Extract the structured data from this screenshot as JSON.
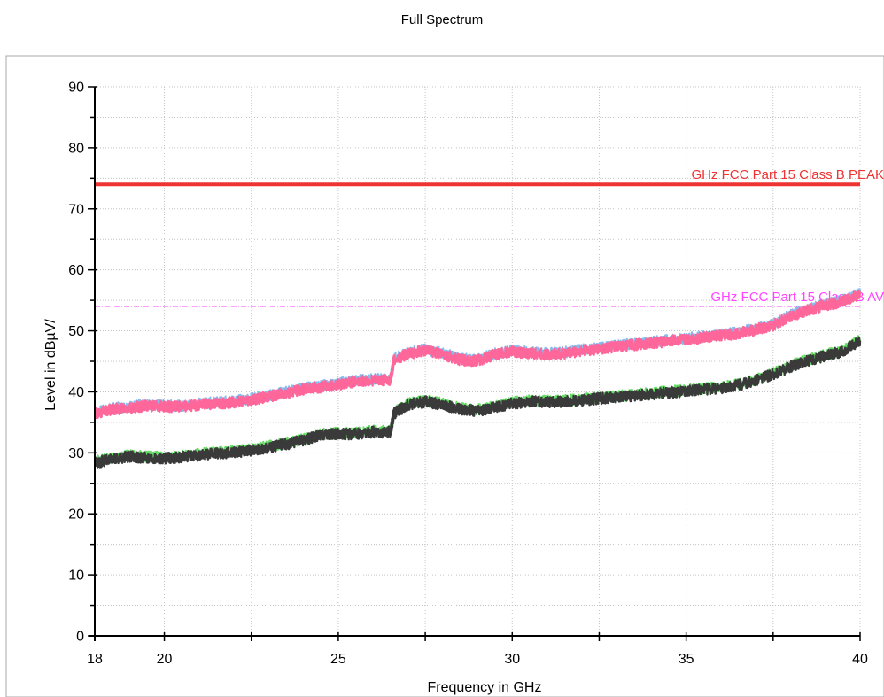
{
  "chart_data": {
    "type": "line",
    "title": "Full Spectrum",
    "xlabel": "Frequency in GHz",
    "ylabel": "Level in dBµV/",
    "xlim": [
      18,
      40
    ],
    "ylim": [
      0,
      90
    ],
    "x_ticks": [
      "18",
      "20",
      "25",
      "30",
      "35",
      "40"
    ],
    "y_ticks": [
      "0",
      "10",
      "20",
      "30",
      "40",
      "50",
      "60",
      "70",
      "80",
      "90"
    ],
    "grid": true,
    "limit_lines": [
      {
        "label": "GHz FCC Part 15 Class B PEAK",
        "value": 74,
        "color": "#ee3333",
        "style": "solid"
      },
      {
        "label": "GHz FCC Part 15 Class B AV",
        "value": 54,
        "color": "#ff44ff",
        "style": "dashdot"
      }
    ],
    "series": [
      {
        "color": "#88bbee",
        "x": [
          18,
          18.5,
          19,
          19.5,
          20,
          20.5,
          21,
          21.5,
          22,
          22.5,
          23,
          23.5,
          24,
          24.5,
          25,
          25.5,
          26,
          26.5,
          26.6,
          27,
          27.5,
          28,
          28.5,
          29,
          29.5,
          30,
          30.5,
          31,
          31.5,
          32,
          32.5,
          33,
          33.5,
          34,
          34.5,
          35,
          35.5,
          36,
          36.5,
          37,
          37.5,
          38,
          38.5,
          39,
          39.5,
          40
        ],
        "y": [
          36.6,
          37.3,
          37.6,
          37.9,
          37.8,
          37.7,
          38.1,
          38.3,
          38.5,
          38.9,
          39.4,
          40.0,
          40.6,
          41.0,
          41.4,
          41.9,
          42.1,
          42.1,
          45.4,
          46.4,
          47.0,
          46.4,
          45.4,
          45.3,
          46.3,
          46.8,
          46.5,
          46.3,
          46.5,
          46.9,
          47.2,
          47.6,
          47.9,
          48.2,
          48.5,
          48.8,
          49.1,
          49.4,
          49.8,
          50.4,
          51.1,
          52.6,
          53.6,
          54.4,
          55.0,
          56.2
        ]
      },
      {
        "color": "#ff6699",
        "x": [
          18,
          18.5,
          19,
          19.5,
          20,
          20.5,
          21,
          21.5,
          22,
          22.5,
          23,
          23.5,
          24,
          24.5,
          25,
          25.5,
          26,
          26.5,
          26.6,
          27,
          27.5,
          28,
          28.5,
          29,
          29.5,
          30,
          30.5,
          31,
          31.5,
          32,
          32.5,
          33,
          33.5,
          34,
          34.5,
          35,
          35.5,
          36,
          36.5,
          37,
          37.5,
          38,
          38.5,
          39,
          39.5,
          40
        ],
        "y": [
          36.4,
          37.1,
          37.4,
          37.7,
          37.6,
          37.5,
          37.9,
          38.1,
          38.3,
          38.7,
          39.2,
          39.8,
          40.4,
          40.8,
          41.2,
          41.7,
          41.9,
          41.9,
          45.2,
          46.2,
          46.8,
          46.2,
          45.2,
          45.1,
          46.1,
          46.6,
          46.3,
          46.1,
          46.3,
          46.7,
          47.0,
          47.4,
          47.7,
          48.0,
          48.3,
          48.6,
          48.9,
          49.2,
          49.6,
          50.2,
          50.9,
          52.4,
          53.4,
          54.2,
          54.8,
          56.0
        ]
      },
      {
        "color": "#66dd66",
        "x": [
          18,
          18.5,
          19,
          19.5,
          20,
          20.5,
          21,
          21.5,
          22,
          22.5,
          23,
          23.5,
          24,
          24.5,
          25,
          25.5,
          26,
          26.5,
          26.6,
          27,
          27.5,
          28,
          28.5,
          29,
          29.5,
          30,
          30.5,
          31,
          31.5,
          32,
          32.5,
          33,
          33.5,
          34,
          34.5,
          35,
          35.5,
          36,
          36.5,
          37,
          37.5,
          38,
          38.5,
          39,
          39.5,
          40
        ],
        "y": [
          28.6,
          29.1,
          29.6,
          29.4,
          29.3,
          29.5,
          29.8,
          30.1,
          30.3,
          30.6,
          31.1,
          31.6,
          32.3,
          33.1,
          33.3,
          33.3,
          33.6,
          33.6,
          36.6,
          38.1,
          38.6,
          38.1,
          37.3,
          37.1,
          37.6,
          38.3,
          38.6,
          38.5,
          38.6,
          38.8,
          39.1,
          39.3,
          39.6,
          39.8,
          40.1,
          40.3,
          40.6,
          40.8,
          41.3,
          42.1,
          43.1,
          44.3,
          45.3,
          46.1,
          46.8,
          48.6
        ]
      },
      {
        "color": "#3a3a3a",
        "x": [
          18,
          18.5,
          19,
          19.5,
          20,
          20.5,
          21,
          21.5,
          22,
          22.5,
          23,
          23.5,
          24,
          24.5,
          25,
          25.5,
          26,
          26.5,
          26.6,
          27,
          27.5,
          28,
          28.5,
          29,
          29.5,
          30,
          30.5,
          31,
          31.5,
          32,
          32.5,
          33,
          33.5,
          34,
          34.5,
          35,
          35.5,
          36,
          36.5,
          37,
          37.5,
          38,
          38.5,
          39,
          39.5,
          40
        ],
        "y": [
          28.4,
          28.9,
          29.4,
          29.2,
          29.1,
          29.3,
          29.6,
          29.9,
          30.1,
          30.4,
          30.9,
          31.4,
          32.1,
          32.9,
          33.1,
          33.1,
          33.4,
          33.4,
          36.4,
          37.9,
          38.4,
          37.9,
          37.1,
          36.9,
          37.4,
          38.1,
          38.4,
          38.3,
          38.4,
          38.6,
          38.9,
          39.1,
          39.4,
          39.6,
          39.9,
          40.1,
          40.4,
          40.6,
          41.1,
          41.9,
          42.9,
          44.1,
          45.1,
          45.9,
          46.6,
          48.4
        ]
      }
    ]
  }
}
